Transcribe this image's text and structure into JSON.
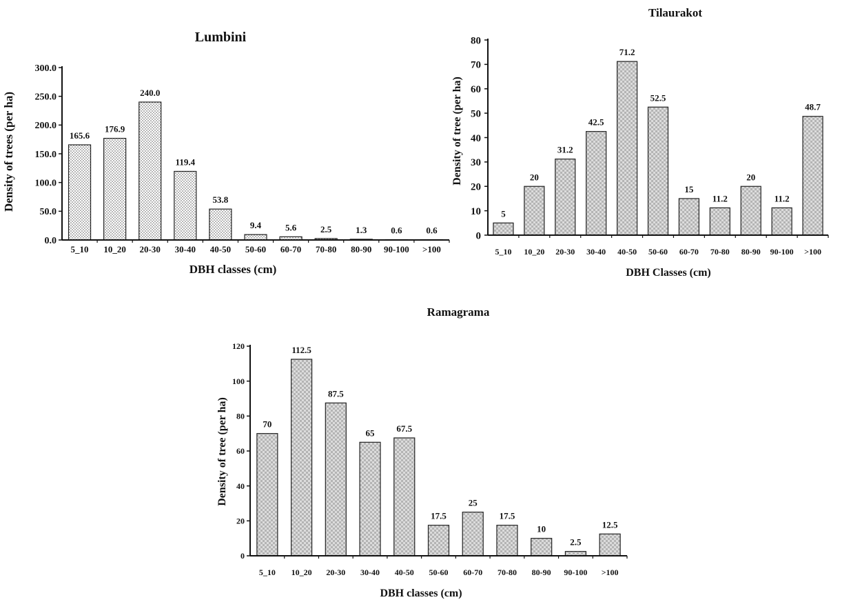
{
  "chart_data": [
    {
      "type": "bar",
      "title": "Lumbini",
      "xlabel": "DBH classes (cm)",
      "ylabel": "Density of trees (per ha)",
      "categories": [
        "5_10",
        "10_20",
        "20-30",
        "30-40",
        "40-50",
        "50-60",
        "60-70",
        "70-80",
        "80-90",
        "90-100",
        ">100"
      ],
      "values": [
        165.6,
        176.9,
        240.0,
        119.4,
        53.8,
        9.4,
        5.6,
        2.5,
        1.3,
        0.6,
        0.6
      ],
      "value_labels": [
        "165.6",
        "176.9",
        "240.0",
        "119.4",
        "53.8",
        "9.4",
        "5.6",
        "2.5",
        "1.3",
        "0.6",
        "0.6"
      ],
      "ylim": [
        0,
        300
      ],
      "yticks": [
        "0.0",
        "50.0",
        "100.0",
        "150.0",
        "200.0",
        "250.0",
        "300.0"
      ],
      "grid": false,
      "bar_pattern": "dots"
    },
    {
      "type": "bar",
      "title": "Tilaurakot",
      "xlabel": "DBH Classes (cm)",
      "ylabel": "Density of tree (per ha)",
      "categories": [
        "5_10",
        "10_20",
        "20-30",
        "30-40",
        "40-50",
        "50-60",
        "60-70",
        "70-80",
        "80-90",
        "90-100",
        ">100"
      ],
      "values": [
        5,
        20,
        31.2,
        42.5,
        71.2,
        52.5,
        15,
        11.2,
        20,
        11.2,
        48.7
      ],
      "value_labels": [
        "5",
        "20",
        "31.2",
        "42.5",
        "71.2",
        "52.5",
        "15",
        "11.2",
        "20",
        "11.2",
        "48.7"
      ],
      "ylim": [
        0,
        80
      ],
      "yticks": [
        "0",
        "10",
        "20",
        "30",
        "40",
        "50",
        "60",
        "70",
        "80"
      ],
      "grid": false,
      "bar_pattern": "checker"
    },
    {
      "type": "bar",
      "title": "Ramagrama",
      "xlabel": "DBH classes (cm)",
      "ylabel": "Density of tree (per ha)",
      "categories": [
        "5_10",
        "10_20",
        "20-30",
        "30-40",
        "40-50",
        "50-60",
        "60-70",
        "70-80",
        "80-90",
        "90-100",
        ">100"
      ],
      "values": [
        70,
        112.5,
        87.5,
        65,
        67.5,
        17.5,
        25,
        17.5,
        10,
        2.5,
        12.5
      ],
      "value_labels": [
        "70",
        "112.5",
        "87.5",
        "65",
        "67.5",
        "17.5",
        "25",
        "17.5",
        "10",
        "2.5",
        "12.5"
      ],
      "ylim": [
        0,
        120
      ],
      "yticks": [
        "0",
        "20",
        "40",
        "60",
        "80",
        "100",
        "120"
      ],
      "grid": false,
      "bar_pattern": "checker"
    }
  ]
}
